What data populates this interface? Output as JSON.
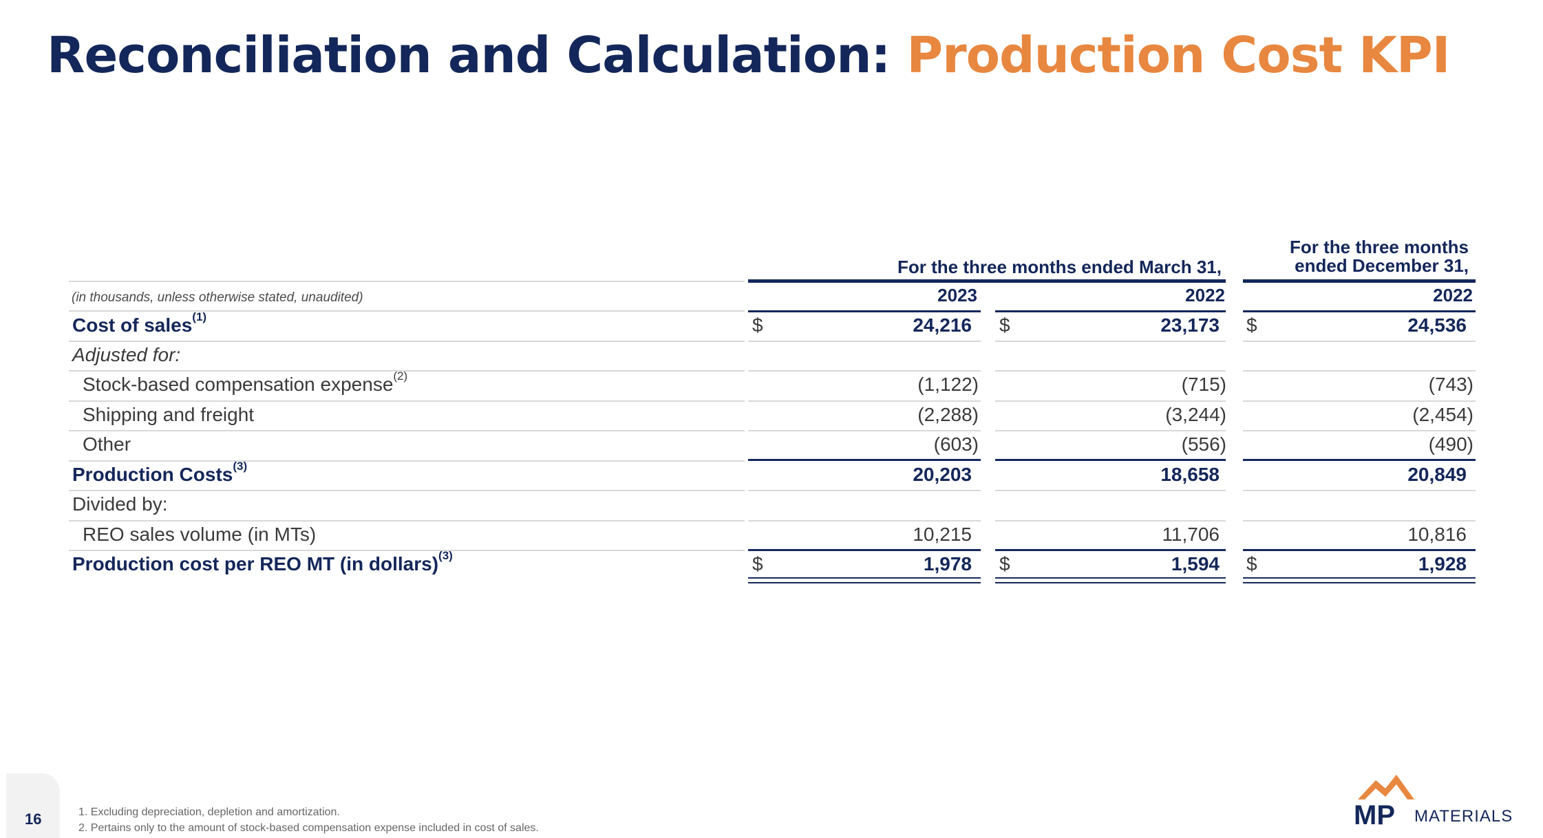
{
  "title": {
    "main": "Reconciliation and Calculation: ",
    "accent": "Production Cost KPI"
  },
  "table": {
    "group_header_1": "For the three months ended March 31,",
    "group_header_2_line1": "For the three months",
    "group_header_2_line2": "ended December 31,",
    "unit_note": "(in thousands, unless otherwise stated, unaudited)",
    "years": [
      "2023",
      "2022",
      "2022"
    ],
    "rows": [
      {
        "label": "Cost of sales",
        "sup": "(1)",
        "values": [
          "24,216",
          "23,173",
          "24,536"
        ],
        "currency": "$"
      },
      {
        "label": "Adjusted for:"
      },
      {
        "label": "Stock-based compensation expense",
        "sup": "(2)",
        "values": [
          "(1,122)",
          "(715)",
          "(743)"
        ]
      },
      {
        "label": "Shipping and freight",
        "values": [
          "(2,288)",
          "(3,244)",
          "(2,454)"
        ]
      },
      {
        "label": "Other",
        "values": [
          "(603)",
          "(556)",
          "(490)"
        ]
      },
      {
        "label": "Production Costs",
        "sup": "(3)",
        "values": [
          "20,203",
          "18,658",
          "20,849"
        ]
      },
      {
        "label": "Divided by:"
      },
      {
        "label": "REO sales volume (in MTs)",
        "values": [
          "10,215",
          "11,706",
          "10,816"
        ]
      },
      {
        "label": "Production cost per REO MT (in dollars)",
        "sup": "(3)",
        "values": [
          "1,978",
          "1,594",
          "1,928"
        ],
        "currency": "$"
      }
    ]
  },
  "footer": {
    "page_number": "16",
    "footnotes": [
      "1.  Excluding depreciation, depletion and amortization.",
      "2.  Pertains only to the amount of stock-based compensation expense included in cost of sales."
    ],
    "logo_mark": "MP",
    "logo_word": "MATERIALS"
  },
  "colors": {
    "navy": "#14275a",
    "orange": "#e8873f"
  }
}
